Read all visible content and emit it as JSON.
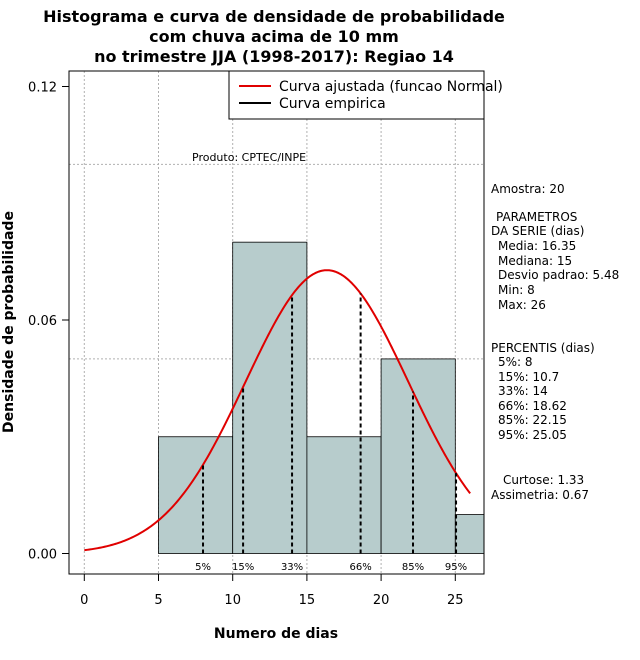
{
  "chart_data": {
    "type": "bar",
    "title": [
      "Histograma e curva de densidade de probabilidade",
      "com chuva acima de 10 mm",
      "no trimestre JJA (1998-2017): Regiao 14"
    ],
    "xlabel": "Numero de dias",
    "ylabel": "Densidade de probabilidade",
    "xlim": [
      -1,
      27
    ],
    "ylim": [
      0,
      0.12
    ],
    "xticks": [
      0,
      5,
      10,
      15,
      20,
      25
    ],
    "yticks": [
      0.0,
      0.06,
      0.12
    ],
    "ytick_labels": [
      "0.00",
      "0.06",
      "0.12"
    ],
    "grid": true,
    "bins": [
      {
        "start": 5,
        "end": 10,
        "density": 0.03
      },
      {
        "start": 10,
        "end": 15,
        "density": 0.08
      },
      {
        "start": 15,
        "end": 20,
        "density": 0.03
      },
      {
        "start": 20,
        "end": 25,
        "density": 0.05
      },
      {
        "start": 25,
        "end": 27,
        "density": 0.01
      }
    ],
    "bar_color": "#b7cccc",
    "normal_fit": {
      "mean": 16.35,
      "sd": 5.48,
      "x_range": [
        0,
        26
      ],
      "color": "#e00000"
    },
    "percentiles": [
      {
        "label": "5%",
        "value": 8
      },
      {
        "label": "15%",
        "value": 10.7
      },
      {
        "label": "33%",
        "value": 14
      },
      {
        "label": "66%",
        "value": 18.62
      },
      {
        "label": "85%",
        "value": 22.15
      },
      {
        "label": "95%",
        "value": 25.05
      }
    ],
    "legend": {
      "position": "top-right",
      "entries": [
        {
          "label": "Curva ajustada (funcao Normal)",
          "color": "#e00000"
        },
        {
          "label": "Curva empirica",
          "color": "#000000"
        }
      ]
    },
    "annotation": "Produto: CPTEC/INPE"
  },
  "stats": {
    "sample": "Amostra: 20",
    "params_header": [
      "PARAMETROS",
      "DA SERIE (dias)"
    ],
    "params": [
      "Media: 16.35",
      "Mediana: 15",
      "Desvio padrao: 5.48",
      "Min: 8",
      "Max: 26"
    ],
    "percentis_header": "PERCENTIS (dias)",
    "percentis": [
      "5%: 8",
      "15%: 10.7",
      "33%: 14",
      "66%: 18.62",
      "85%: 22.15",
      "95%: 25.05"
    ],
    "kurtosis": "Curtose: 1.33",
    "skewness": "Assimetria: 0.67"
  }
}
